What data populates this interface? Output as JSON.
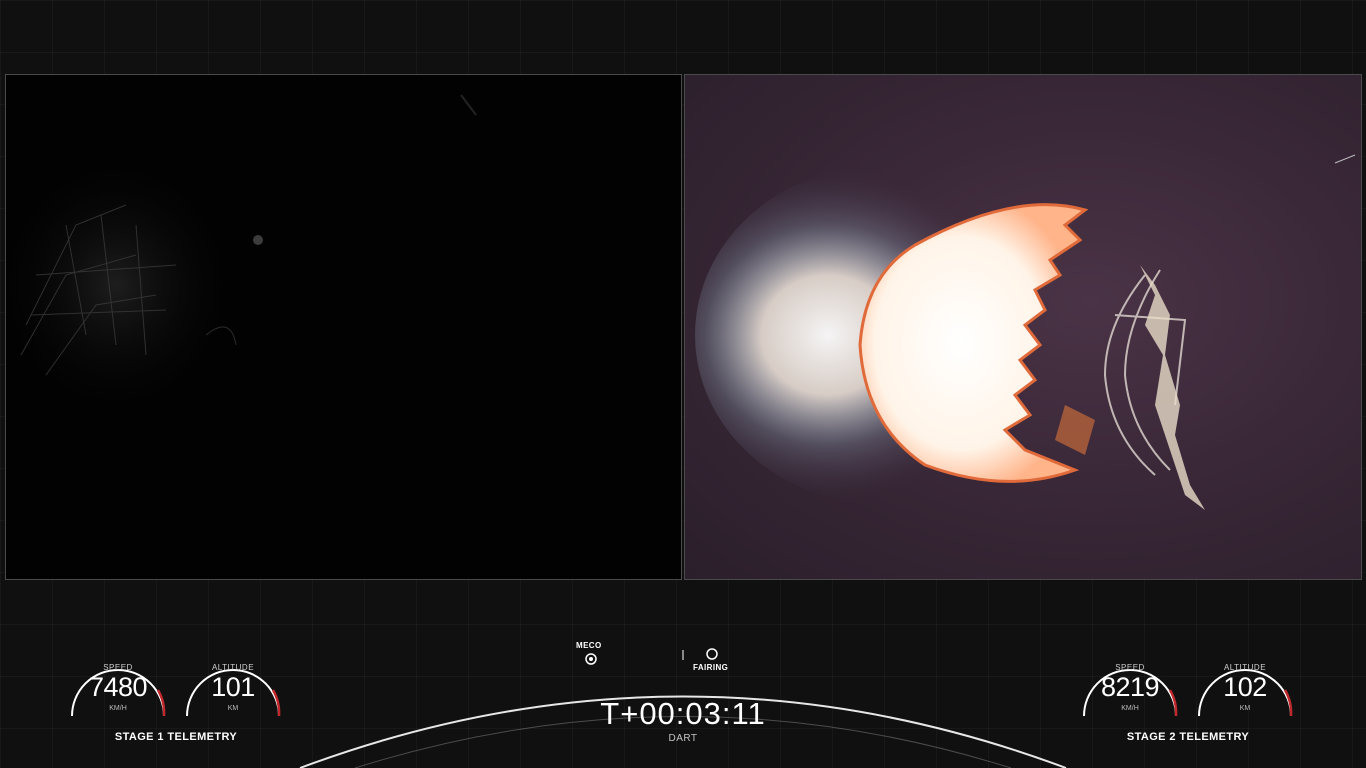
{
  "video": {
    "left_feed": "stage-1-camera",
    "right_feed": "stage-2-camera"
  },
  "stage1": {
    "speed": {
      "label": "SPEED",
      "value": "7480",
      "unit": "KM/H"
    },
    "altitude": {
      "label": "ALTITUDE",
      "value": "101",
      "unit": "KM"
    },
    "title": "STAGE 1 TELEMETRY"
  },
  "stage2": {
    "speed": {
      "label": "SPEED",
      "value": "8219",
      "unit": "KM/H"
    },
    "altitude": {
      "label": "ALTITUDE",
      "value": "102",
      "unit": "KM"
    },
    "title": "STAGE 2 TELEMETRY"
  },
  "timeline": {
    "milestones": [
      {
        "label": "MECO",
        "state": "passed"
      },
      {
        "label": "FAIRING",
        "state": "upcoming"
      }
    ],
    "timer": "T+00:03:11",
    "mission": "DART"
  },
  "colors": {
    "gauge_arc": "#ffffff",
    "gauge_accent": "#c0282d",
    "background": "#101010"
  }
}
